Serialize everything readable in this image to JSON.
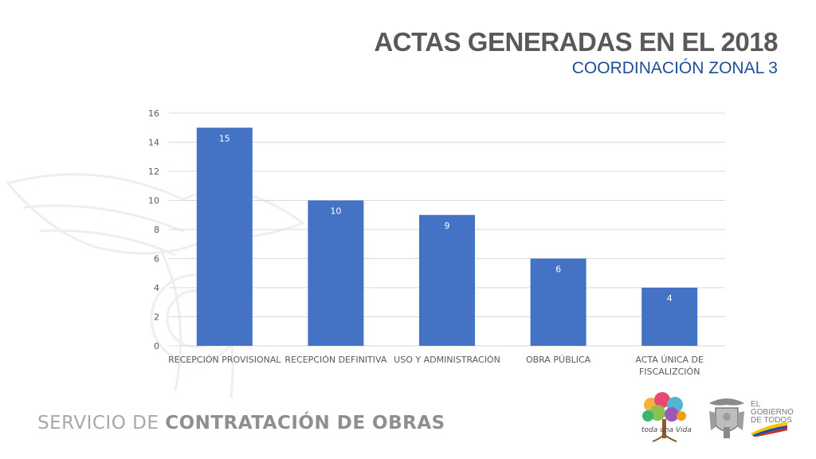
{
  "header": {
    "title": "ACTAS GENERADAS EN EL 2018",
    "subtitle": "COORDINACIÓN ZONAL 3"
  },
  "footer": {
    "left_light": "SERVICIO DE ",
    "left_bold": "CONTRATACIÓN DE OBRAS",
    "logo_tree_text": "toda una Vida",
    "gov_line1": "EL",
    "gov_line2": "GOBIERNO",
    "gov_line3": "DE TODOS"
  },
  "colors": {
    "bar": "#4472c4",
    "title": "#595959",
    "subtitle": "#1f4e96",
    "grid": "#d9d9d9"
  },
  "chart_data": {
    "type": "bar",
    "categories": [
      [
        "RECEPCIÓN PROVISIONAL"
      ],
      [
        "RECEPCIÓN DEFINITIVA"
      ],
      [
        "USO Y ADMINISTRACIÓN"
      ],
      [
        "OBRA PÚBLICA"
      ],
      [
        "ACTA ÚNICA DE",
        "FISCALIZCIÓN"
      ]
    ],
    "values": [
      15,
      10,
      9,
      6,
      4
    ],
    "data_labels": true,
    "ylim": [
      0,
      16
    ],
    "yticks": [
      0,
      2,
      4,
      6,
      8,
      10,
      12,
      14,
      16
    ],
    "grid": true,
    "title": "",
    "xlabel": "",
    "ylabel": ""
  }
}
